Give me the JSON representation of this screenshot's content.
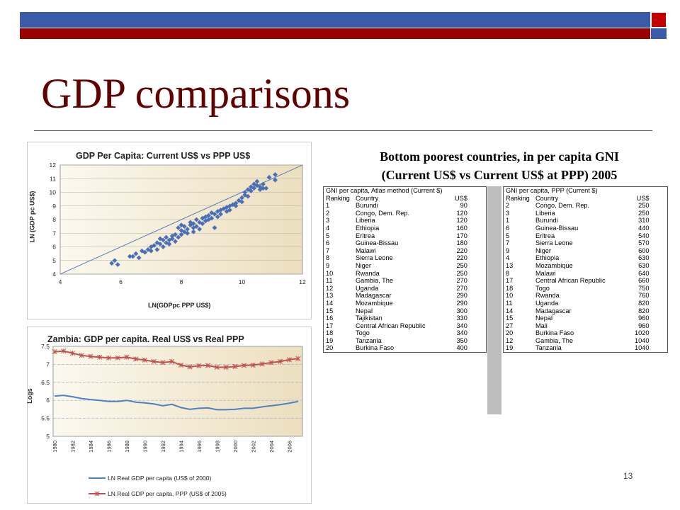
{
  "slide": {
    "title": "GDP comparisons",
    "number": "13",
    "table_heading_line1": "Bottom poorest countries, in per capita GNI",
    "table_heading_line2": "(Current US$ vs Current US$ at PPP) 2005"
  },
  "colors": {
    "title": "#600000",
    "topbar_blue": "#3a5ba8",
    "topbar_red": "#990000",
    "scatter_marker": "#4a6fb5",
    "line_series_1": "#4f81bd",
    "line_series_2": "#c0504d"
  },
  "chart_data": [
    {
      "type": "scatter",
      "title": "GDP Per Capita: Current US$ vs PPP US$",
      "xlabel": "LN(GDPpc PPP US$)",
      "ylabel": "LN (GDP pc US$)",
      "xlim": [
        4,
        12
      ],
      "ylim": [
        4,
        12
      ],
      "xticks": [
        "4",
        "6",
        "8",
        "10",
        "12"
      ],
      "yticks": [
        "4",
        "5",
        "6",
        "7",
        "8",
        "9",
        "10",
        "11",
        "12"
      ],
      "background": "gradient beige",
      "reference_line": [
        [
          4,
          4
        ],
        [
          12,
          12
        ]
      ],
      "points": [
        [
          5.7,
          4.8
        ],
        [
          5.9,
          4.7
        ],
        [
          5.8,
          5.0
        ],
        [
          6.3,
          5.3
        ],
        [
          6.5,
          5.5
        ],
        [
          6.4,
          5.3
        ],
        [
          6.6,
          5.2
        ],
        [
          6.7,
          5.7
        ],
        [
          6.8,
          5.6
        ],
        [
          6.9,
          5.8
        ],
        [
          7.0,
          5.7
        ],
        [
          7.1,
          6.1
        ],
        [
          7.2,
          5.8
        ],
        [
          7.2,
          6.3
        ],
        [
          7.3,
          6.2
        ],
        [
          7.4,
          6.5
        ],
        [
          7.4,
          6.0
        ],
        [
          7.5,
          6.3
        ],
        [
          7.5,
          6.7
        ],
        [
          7.6,
          6.5
        ],
        [
          7.6,
          6.2
        ],
        [
          7.7,
          6.6
        ],
        [
          7.7,
          6.8
        ],
        [
          7.8,
          6.4
        ],
        [
          7.8,
          6.9
        ],
        [
          7.9,
          6.7
        ],
        [
          7.9,
          7.4
        ],
        [
          8.0,
          6.9
        ],
        [
          8.0,
          7.2
        ],
        [
          8.1,
          7.1
        ],
        [
          8.1,
          7.5
        ],
        [
          8.2,
          7.3
        ],
        [
          8.2,
          7.0
        ],
        [
          8.3,
          7.6
        ],
        [
          8.3,
          7.8
        ],
        [
          8.4,
          7.4
        ],
        [
          8.4,
          7.7
        ],
        [
          8.5,
          7.5
        ],
        [
          8.5,
          8.0
        ],
        [
          8.6,
          7.8
        ],
        [
          8.6,
          7.3
        ],
        [
          8.7,
          8.1
        ],
        [
          8.7,
          7.7
        ],
        [
          8.8,
          8.2
        ],
        [
          8.8,
          7.9
        ],
        [
          8.9,
          8.0
        ],
        [
          8.9,
          8.3
        ],
        [
          9.0,
          8.1
        ],
        [
          9.0,
          8.5
        ],
        [
          9.1,
          8.4
        ],
        [
          9.1,
          7.4
        ],
        [
          9.2,
          8.6
        ],
        [
          9.2,
          8.2
        ],
        [
          9.3,
          8.7
        ],
        [
          9.3,
          8.4
        ],
        [
          9.4,
          8.8
        ],
        [
          9.5,
          8.9
        ],
        [
          9.5,
          8.6
        ],
        [
          9.6,
          9.0
        ],
        [
          9.7,
          9.1
        ],
        [
          9.8,
          9.2
        ],
        [
          9.9,
          9.4
        ],
        [
          10.0,
          9.6
        ],
        [
          10.0,
          9.3
        ],
        [
          10.1,
          9.8
        ],
        [
          10.1,
          10.0
        ],
        [
          10.2,
          9.7
        ],
        [
          10.2,
          10.2
        ],
        [
          10.3,
          10.1
        ],
        [
          10.3,
          10.4
        ],
        [
          10.4,
          10.3
        ],
        [
          10.4,
          10.6
        ],
        [
          10.5,
          10.5
        ],
        [
          10.5,
          10.8
        ],
        [
          10.6,
          10.4
        ],
        [
          10.6,
          10.2
        ],
        [
          10.7,
          10.6
        ],
        [
          10.8,
          10.3
        ],
        [
          10.9,
          11.1
        ],
        [
          11.1,
          11.3
        ],
        [
          11.1,
          10.9
        ],
        [
          7.0,
          6.0
        ],
        [
          7.3,
          6.6
        ],
        [
          8.0,
          7.6
        ],
        [
          8.4,
          7.1
        ],
        [
          9.6,
          8.7
        ],
        [
          9.8,
          9.0
        ],
        [
          10.7,
          10.3
        ]
      ]
    },
    {
      "type": "line",
      "title": "Zambia: GDP per capita. Real US$ vs Real PPP",
      "xlabel": "",
      "ylabel": "Logs",
      "ylim": [
        5,
        7.5
      ],
      "yticks": [
        "5",
        "5.5",
        "6",
        "6.5",
        "7",
        "7.5"
      ],
      "x": [
        1980,
        1981,
        1982,
        1983,
        1984,
        1985,
        1986,
        1987,
        1988,
        1989,
        1990,
        1991,
        1992,
        1993,
        1994,
        1995,
        1996,
        1997,
        1998,
        1999,
        2000,
        2001,
        2002,
        2003,
        2004,
        2005,
        2006,
        2007
      ],
      "xticks": [
        "1980",
        "1982",
        "1984",
        "1986",
        "1988",
        "1990",
        "1992",
        "1994",
        "1996",
        "1998",
        "2000",
        "2002",
        "2004",
        "2006"
      ],
      "series": [
        {
          "name": "LN Real GDP per capita (US$ of 2000)",
          "values": [
            6.12,
            6.14,
            6.1,
            6.05,
            6.02,
            6.0,
            5.97,
            5.97,
            6.0,
            5.95,
            5.93,
            5.9,
            5.85,
            5.89,
            5.8,
            5.75,
            5.78,
            5.79,
            5.74,
            5.74,
            5.75,
            5.78,
            5.78,
            5.82,
            5.85,
            5.88,
            5.92,
            5.97
          ]
        },
        {
          "name": "LN Real GDP per capita, PPP (US$ of 2005)",
          "values": [
            7.35,
            7.37,
            7.31,
            7.25,
            7.22,
            7.2,
            7.18,
            7.18,
            7.2,
            7.15,
            7.12,
            7.08,
            7.05,
            7.08,
            6.98,
            6.93,
            6.96,
            6.97,
            6.92,
            6.92,
            6.94,
            6.97,
            6.98,
            7.01,
            7.05,
            7.08,
            7.13,
            7.16
          ]
        }
      ],
      "legend_position": "bottom"
    }
  ],
  "table_left": {
    "title": "GNI per capita, Atlas method (Current $)",
    "columns": [
      "Ranking",
      "Country",
      "US$"
    ],
    "rows": [
      [
        "1",
        "Burundi",
        "90"
      ],
      [
        "2",
        "Congo, Dem. Rep.",
        "120"
      ],
      [
        "3",
        "Liberia",
        "120"
      ],
      [
        "4",
        "Ethiopia",
        "160"
      ],
      [
        "5",
        "Eritrea",
        "170"
      ],
      [
        "6",
        "Guinea-Bissau",
        "180"
      ],
      [
        "7",
        "Malawi",
        "220"
      ],
      [
        "8",
        "Sierra Leone",
        "220"
      ],
      [
        "9",
        "Niger",
        "250"
      ],
      [
        "10",
        "Rwanda",
        "250"
      ],
      [
        "11",
        "Gambia, The",
        "270"
      ],
      [
        "12",
        "Uganda",
        "270"
      ],
      [
        "13",
        "Madagascar",
        "290"
      ],
      [
        "14",
        "Mozambique",
        "290"
      ],
      [
        "15",
        "Nepal",
        "300"
      ],
      [
        "16",
        "Tajikistan",
        "330"
      ],
      [
        "17",
        "Central African Republic",
        "340"
      ],
      [
        "18",
        "Togo",
        "340"
      ],
      [
        "19",
        "Tanzania",
        "350"
      ],
      [
        "20",
        "Burkina Faso",
        "400"
      ]
    ]
  },
  "table_right": {
    "title": "GNI per capita, PPP (Current $)",
    "columns": [
      "Ranking",
      "Country",
      "US$"
    ],
    "rows": [
      [
        "2",
        "Congo, Dem. Rep.",
        "250"
      ],
      [
        "3",
        "Liberia",
        "250"
      ],
      [
        "1",
        "Burundi",
        "310"
      ],
      [
        "6",
        "Guinea-Bissau",
        "440"
      ],
      [
        "5",
        "Eritrea",
        "540"
      ],
      [
        "7",
        "Sierra Leone",
        "570"
      ],
      [
        "9",
        "Niger",
        "600"
      ],
      [
        "4",
        "Ethiopia",
        "630"
      ],
      [
        "13",
        "Mozambique",
        "630"
      ],
      [
        "8",
        "Malawi",
        "640"
      ],
      [
        "17",
        "Central African Republic",
        "660"
      ],
      [
        "18",
        "Togo",
        "750"
      ],
      [
        "10",
        "Rwanda",
        "760"
      ],
      [
        "11",
        "Uganda",
        "820"
      ],
      [
        "14",
        "Madagascar",
        "820"
      ],
      [
        "15",
        "Nepal",
        "960"
      ],
      [
        "27",
        "Mali",
        "960"
      ],
      [
        "20",
        "Burkina Faso",
        "1020"
      ],
      [
        "12",
        "Gambia, The",
        "1040"
      ],
      [
        "19",
        "Tanzania",
        "1040"
      ]
    ]
  }
}
